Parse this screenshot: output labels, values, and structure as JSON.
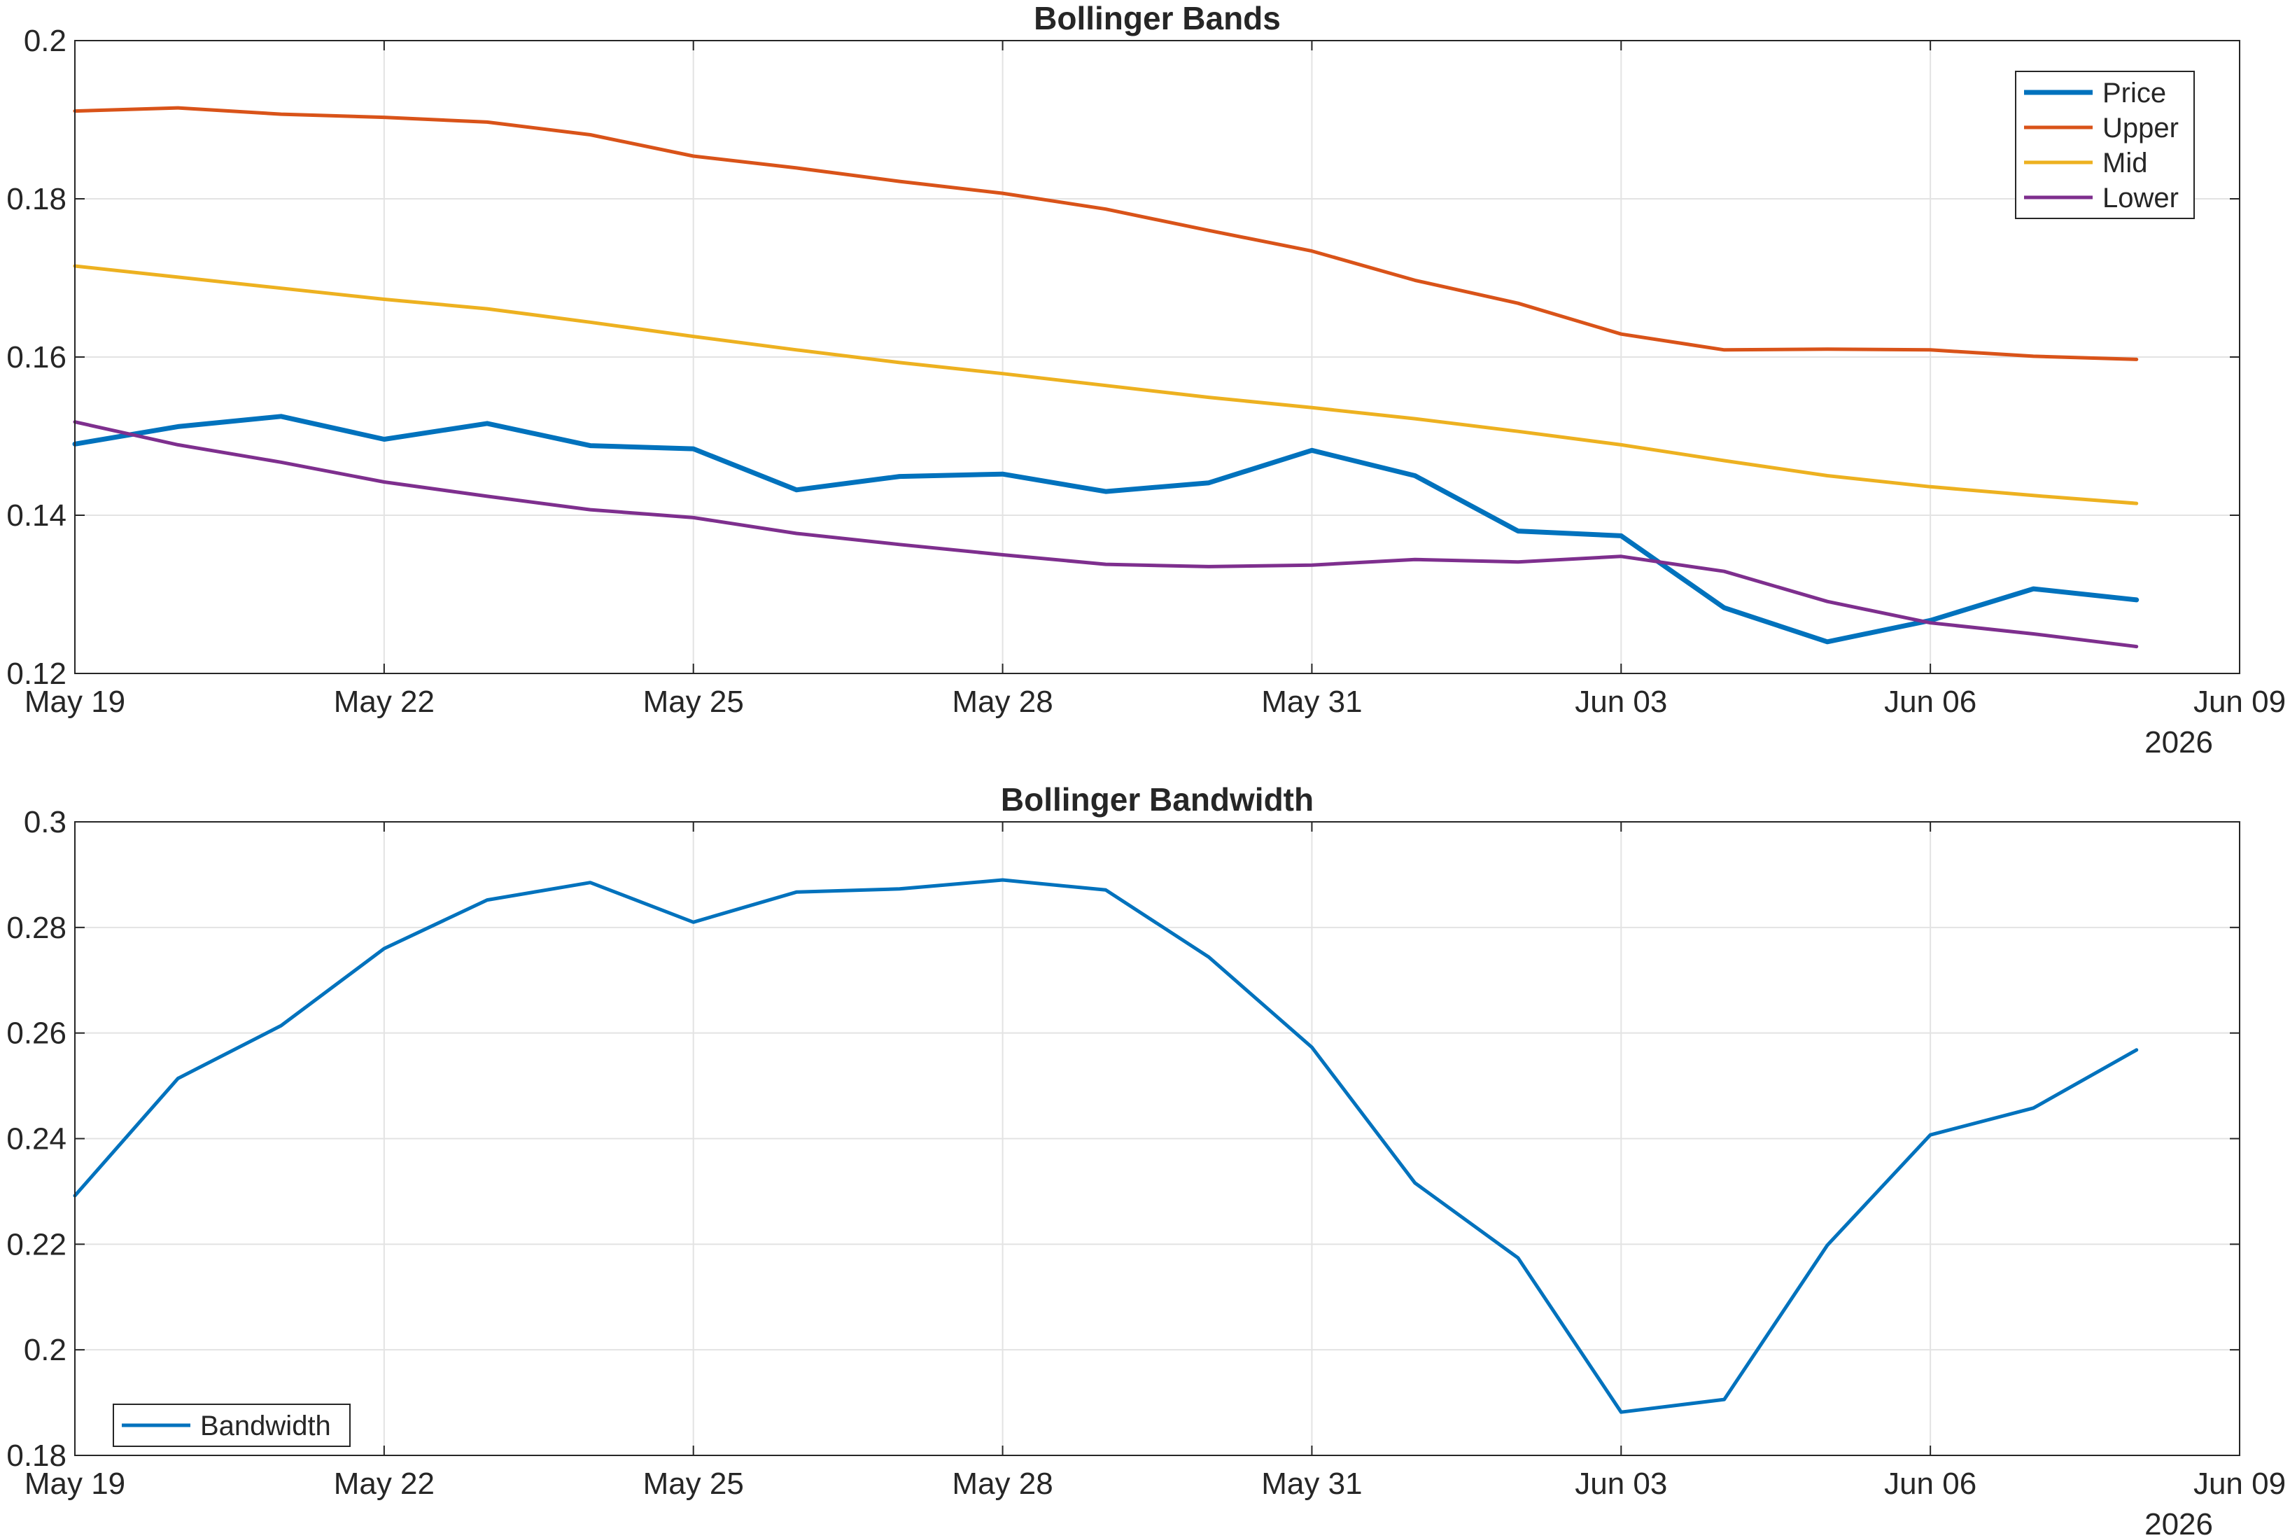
{
  "chart_data": [
    {
      "type": "line",
      "title": "Bollinger Bands",
      "xlabel": "",
      "ylabel": "",
      "x": [
        "2026-05-19",
        "2026-05-20",
        "2026-05-21",
        "2026-05-22",
        "2026-05-23",
        "2026-05-24",
        "2026-05-25",
        "2026-05-26",
        "2026-05-27",
        "2026-05-28",
        "2026-05-29",
        "2026-05-30",
        "2026-05-31",
        "2026-06-01",
        "2026-06-02",
        "2026-06-03",
        "2026-06-04",
        "2026-06-05",
        "2026-06-06",
        "2026-06-07",
        "2026-06-08"
      ],
      "xlim": [
        "2026-05-19",
        "2026-06-09"
      ],
      "xticks": [
        "2026-05-19",
        "2026-05-22",
        "2026-05-25",
        "2026-05-28",
        "2026-05-31",
        "2026-06-03",
        "2026-06-06",
        "2026-06-09"
      ],
      "xtick_labels": [
        "May 19",
        "May 22",
        "May 25",
        "May 28",
        "May 31",
        "Jun 03",
        "Jun 06",
        "Jun 09"
      ],
      "x_secondary_label": "2026",
      "ylim": [
        0.12,
        0.2
      ],
      "yticks": [
        0.12,
        0.14,
        0.16,
        0.18,
        0.2
      ],
      "ytick_labels": [
        "0.12",
        "0.14",
        "0.16",
        "0.18",
        "0.2"
      ],
      "grid": true,
      "legend": "top-right",
      "series": [
        {
          "name": "Price",
          "color": "#0072BD",
          "width": 7,
          "values": [
            0.149,
            0.1512,
            0.1525,
            0.1496,
            0.1516,
            0.1488,
            0.1484,
            0.1432,
            0.1449,
            0.1452,
            0.143,
            0.1441,
            0.1482,
            0.145,
            0.138,
            0.1374,
            0.1283,
            0.124,
            0.1267,
            0.1307,
            0.1293
          ]
        },
        {
          "name": "Upper",
          "color": "#D95319",
          "width": 5,
          "values": [
            0.1911,
            0.1915,
            0.1907,
            0.1903,
            0.1897,
            0.1881,
            0.1854,
            0.1839,
            0.1822,
            0.1807,
            0.1787,
            0.176,
            0.1734,
            0.1697,
            0.1668,
            0.1629,
            0.1609,
            0.161,
            0.1609,
            0.1601,
            0.1597
          ]
        },
        {
          "name": "Mid",
          "color": "#EDB120",
          "width": 5,
          "values": [
            0.1715,
            0.1701,
            0.1687,
            0.1673,
            0.1661,
            0.1644,
            0.1626,
            0.1609,
            0.1593,
            0.1579,
            0.1564,
            0.1549,
            0.1536,
            0.1522,
            0.1506,
            0.1489,
            0.1469,
            0.145,
            0.1436,
            0.1425,
            0.1415
          ]
        },
        {
          "name": "Lower",
          "color": "#7E2F8E",
          "width": 5,
          "values": [
            0.1518,
            0.1489,
            0.1467,
            0.1442,
            0.1424,
            0.1407,
            0.1397,
            0.1377,
            0.1363,
            0.135,
            0.1338,
            0.1335,
            0.1337,
            0.1344,
            0.1341,
            0.1348,
            0.1329,
            0.1291,
            0.1264,
            0.125,
            0.1234
          ]
        }
      ]
    },
    {
      "type": "line",
      "title": "Bollinger Bandwidth",
      "xlabel": "",
      "ylabel": "",
      "x": [
        "2026-05-19",
        "2026-05-20",
        "2026-05-21",
        "2026-05-22",
        "2026-05-23",
        "2026-05-24",
        "2026-05-25",
        "2026-05-26",
        "2026-05-27",
        "2026-05-28",
        "2026-05-29",
        "2026-05-30",
        "2026-05-31",
        "2026-06-01",
        "2026-06-02",
        "2026-06-03",
        "2026-06-04",
        "2026-06-05",
        "2026-06-06",
        "2026-06-07",
        "2026-06-08"
      ],
      "xlim": [
        "2026-05-19",
        "2026-06-09"
      ],
      "xticks": [
        "2026-05-19",
        "2026-05-22",
        "2026-05-25",
        "2026-05-28",
        "2026-05-31",
        "2026-06-03",
        "2026-06-06",
        "2026-06-09"
      ],
      "xtick_labels": [
        "May 19",
        "May 22",
        "May 25",
        "May 28",
        "May 31",
        "Jun 03",
        "Jun 06",
        "Jun 09"
      ],
      "x_secondary_label": "2026",
      "ylim": [
        0.18,
        0.3
      ],
      "yticks": [
        0.18,
        0.2,
        0.22,
        0.24,
        0.26,
        0.28,
        0.3
      ],
      "ytick_labels": [
        "0.18",
        "0.2",
        "0.22",
        "0.24",
        "0.26",
        "0.28",
        "0.3"
      ],
      "grid": true,
      "legend": "bottom-left",
      "series": [
        {
          "name": "Bandwidth",
          "color": "#0072BD",
          "width": 5,
          "values": [
            0.2292,
            0.2514,
            0.2614,
            0.276,
            0.2852,
            0.2885,
            0.281,
            0.2867,
            0.2873,
            0.289,
            0.2871,
            0.2744,
            0.2573,
            0.2316,
            0.2174,
            0.1882,
            0.1906,
            0.2198,
            0.2407,
            0.2458,
            0.2568
          ]
        }
      ]
    }
  ]
}
